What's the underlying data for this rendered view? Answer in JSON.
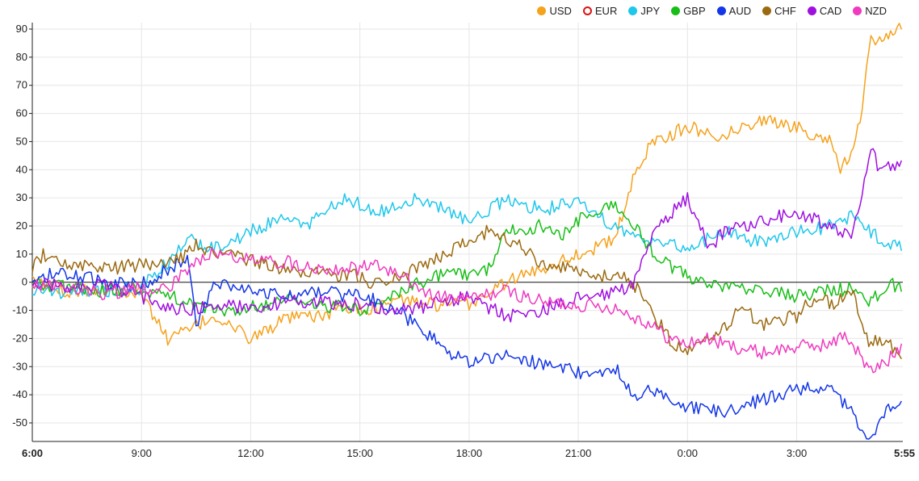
{
  "chart_data": {
    "type": "line",
    "title": "",
    "xlabel": "",
    "ylabel": "",
    "ylim": [
      -55,
      92
    ],
    "x_ticks": [
      "6:00",
      "9:00",
      "12:00",
      "15:00",
      "18:00",
      "21:00",
      "0:00",
      "3:00",
      "5:55"
    ],
    "y_ticks": [
      90,
      80,
      70,
      60,
      50,
      40,
      30,
      20,
      10,
      0,
      -10,
      -20,
      -30,
      -40,
      -50
    ],
    "x_range": [
      0,
      23.9167
    ],
    "grid": true,
    "legend_position": "top-right",
    "series": [
      {
        "name": "USD",
        "color": "#f5a21c",
        "hollow": false,
        "points": [
          [
            0,
            0
          ],
          [
            1,
            -3
          ],
          [
            2,
            -2
          ],
          [
            3,
            -4
          ],
          [
            3.7,
            -20
          ],
          [
            4.3,
            -17
          ],
          [
            5,
            -12
          ],
          [
            6,
            -20
          ],
          [
            7,
            -13
          ],
          [
            8,
            -12
          ],
          [
            8.5,
            -8
          ],
          [
            9,
            -10
          ],
          [
            9.5,
            -9
          ],
          [
            10,
            -6
          ],
          [
            11,
            -8
          ],
          [
            12,
            -8
          ],
          [
            13,
            0
          ],
          [
            14,
            5
          ],
          [
            15,
            10
          ],
          [
            16,
            15
          ],
          [
            16.5,
            36
          ],
          [
            17,
            50
          ],
          [
            18,
            55
          ],
          [
            19,
            52
          ],
          [
            20,
            58
          ],
          [
            21,
            55
          ],
          [
            22,
            50
          ],
          [
            22.2,
            40
          ],
          [
            22.5,
            45
          ],
          [
            22.8,
            60
          ],
          [
            23,
            85
          ],
          [
            23.5,
            88
          ],
          [
            23.9167,
            92
          ]
        ]
      },
      {
        "name": "EUR",
        "color": "#dd1111",
        "hollow": true,
        "points": []
      },
      {
        "name": "JPY",
        "color": "#1fc7eb",
        "hollow": false,
        "points": [
          [
            0,
            -2
          ],
          [
            1,
            -4
          ],
          [
            2,
            -3
          ],
          [
            3,
            -2
          ],
          [
            3.8,
            8
          ],
          [
            4.3,
            15
          ],
          [
            5,
            12
          ],
          [
            6,
            18
          ],
          [
            6.8,
            22
          ],
          [
            7.5,
            20
          ],
          [
            8.5,
            30
          ],
          [
            9.5,
            25
          ],
          [
            10.5,
            30
          ],
          [
            11.5,
            25
          ],
          [
            12,
            22
          ],
          [
            13,
            29
          ],
          [
            14,
            26
          ],
          [
            15,
            28
          ],
          [
            16,
            20
          ],
          [
            16.5,
            16
          ],
          [
            17,
            15
          ],
          [
            18,
            12
          ],
          [
            19,
            18
          ],
          [
            20,
            14
          ],
          [
            21,
            18
          ],
          [
            22,
            20
          ],
          [
            22.5,
            24
          ],
          [
            23,
            18
          ],
          [
            23.5,
            13
          ],
          [
            23.9167,
            12
          ]
        ]
      },
      {
        "name": "GBP",
        "color": "#17be17",
        "hollow": false,
        "points": [
          [
            0,
            0
          ],
          [
            1,
            -2
          ],
          [
            2,
            -3
          ],
          [
            3,
            -2
          ],
          [
            4,
            -6
          ],
          [
            5,
            -10
          ],
          [
            6,
            -9
          ],
          [
            7,
            -6
          ],
          [
            8,
            -8
          ],
          [
            9,
            -10
          ],
          [
            9.5,
            -8
          ],
          [
            10,
            -4
          ],
          [
            11,
            2
          ],
          [
            12,
            3
          ],
          [
            12.5,
            4
          ],
          [
            13,
            18
          ],
          [
            14,
            20
          ],
          [
            14.5,
            16
          ],
          [
            15,
            22
          ],
          [
            16,
            28
          ],
          [
            16.5,
            20
          ],
          [
            17,
            12
          ],
          [
            17.5,
            6
          ],
          [
            18,
            2
          ],
          [
            19,
            -2
          ],
          [
            20,
            -3
          ],
          [
            21,
            -5
          ],
          [
            22,
            -3
          ],
          [
            22.5,
            -2
          ],
          [
            23,
            -8
          ],
          [
            23.5,
            0
          ],
          [
            23.9167,
            -3
          ]
        ]
      },
      {
        "name": "AUD",
        "color": "#1336e8",
        "hollow": false,
        "points": [
          [
            0,
            2
          ],
          [
            1,
            3
          ],
          [
            2,
            0
          ],
          [
            3,
            -1
          ],
          [
            3.8,
            5
          ],
          [
            4.3,
            8
          ],
          [
            4.5,
            -15
          ],
          [
            4.8,
            -8
          ],
          [
            5,
            0
          ],
          [
            6,
            -3
          ],
          [
            7,
            -5
          ],
          [
            8,
            -3
          ],
          [
            8.5,
            -5
          ],
          [
            9,
            -4
          ],
          [
            10,
            -10
          ],
          [
            10.5,
            -15
          ],
          [
            11,
            -20
          ],
          [
            11.5,
            -26
          ],
          [
            12,
            -28
          ],
          [
            13,
            -26
          ],
          [
            14,
            -29
          ],
          [
            15,
            -32
          ],
          [
            15.5,
            -34
          ],
          [
            16,
            -30
          ],
          [
            16.5,
            -40
          ],
          [
            17,
            -38
          ],
          [
            18,
            -44
          ],
          [
            19,
            -46
          ],
          [
            20,
            -42
          ],
          [
            21,
            -38
          ],
          [
            22,
            -37
          ],
          [
            22.3,
            -43
          ],
          [
            22.8,
            -52
          ],
          [
            23,
            -55
          ],
          [
            23.5,
            -46
          ],
          [
            23.9167,
            -42
          ]
        ]
      },
      {
        "name": "CHF",
        "color": "#9b6a10",
        "hollow": false,
        "points": [
          [
            0,
            5
          ],
          [
            0.3,
            10
          ],
          [
            1,
            6
          ],
          [
            2,
            5
          ],
          [
            3,
            6
          ],
          [
            4,
            8
          ],
          [
            4.5,
            13
          ],
          [
            5,
            10
          ],
          [
            6,
            8
          ],
          [
            7,
            4
          ],
          [
            8,
            3
          ],
          [
            9,
            2
          ],
          [
            9.5,
            -1
          ],
          [
            10,
            1
          ],
          [
            11,
            8
          ],
          [
            12,
            15
          ],
          [
            12.5,
            18
          ],
          [
            13,
            15
          ],
          [
            13.5,
            12
          ],
          [
            14,
            6
          ],
          [
            15,
            5
          ],
          [
            15.5,
            1
          ],
          [
            16,
            3
          ],
          [
            16.5,
            0
          ],
          [
            17,
            -10
          ],
          [
            17.5,
            -20
          ],
          [
            18,
            -25
          ],
          [
            19,
            -17
          ],
          [
            19.5,
            -8
          ],
          [
            20,
            -15
          ],
          [
            21,
            -12
          ],
          [
            21.5,
            -5
          ],
          [
            22,
            -8
          ],
          [
            22.5,
            -3
          ],
          [
            23,
            -22
          ],
          [
            23.5,
            -20
          ],
          [
            23.9167,
            -30
          ]
        ]
      },
      {
        "name": "CAD",
        "color": "#9f10e0",
        "hollow": false,
        "points": [
          [
            0,
            0
          ],
          [
            1,
            -2
          ],
          [
            2,
            -1
          ],
          [
            3,
            -5
          ],
          [
            4,
            -10
          ],
          [
            5,
            -8
          ],
          [
            6,
            -9
          ],
          [
            7,
            -7
          ],
          [
            8,
            -7
          ],
          [
            9,
            -8
          ],
          [
            10,
            -10
          ],
          [
            11,
            -8
          ],
          [
            12,
            -5
          ],
          [
            13,
            -12
          ],
          [
            14,
            -10
          ],
          [
            15,
            -6
          ],
          [
            16,
            -4
          ],
          [
            16.5,
            0
          ],
          [
            17,
            15
          ],
          [
            17.5,
            24
          ],
          [
            18,
            30
          ],
          [
            18.3,
            22
          ],
          [
            18.6,
            12
          ],
          [
            19,
            18
          ],
          [
            20,
            22
          ],
          [
            21,
            25
          ],
          [
            22,
            20
          ],
          [
            22.5,
            15
          ],
          [
            22.8,
            30
          ],
          [
            23,
            48
          ],
          [
            23.3,
            40
          ],
          [
            23.9167,
            41
          ]
        ]
      },
      {
        "name": "NZD",
        "color": "#ef3bbf",
        "hollow": false,
        "points": [
          [
            0,
            0
          ],
          [
            1,
            -2
          ],
          [
            2,
            -4
          ],
          [
            3,
            -2
          ],
          [
            3.5,
            -3
          ],
          [
            4,
            1
          ],
          [
            4.5,
            8
          ],
          [
            5,
            10
          ],
          [
            6,
            8
          ],
          [
            7,
            7
          ],
          [
            8,
            5
          ],
          [
            9,
            5
          ],
          [
            9.5,
            6
          ],
          [
            10,
            3
          ],
          [
            11,
            -5
          ],
          [
            12,
            -6
          ],
          [
            13,
            -3
          ],
          [
            14,
            -7
          ],
          [
            15,
            -8
          ],
          [
            16,
            -9
          ],
          [
            16.5,
            -12
          ],
          [
            17,
            -15
          ],
          [
            17.5,
            -20
          ],
          [
            18,
            -22
          ],
          [
            18.5,
            -20
          ],
          [
            19,
            -22
          ],
          [
            20,
            -25
          ],
          [
            21,
            -23
          ],
          [
            22,
            -22
          ],
          [
            22.3,
            -18
          ],
          [
            22.7,
            -25
          ],
          [
            23,
            -32
          ],
          [
            23.5,
            -28
          ],
          [
            23.9167,
            -22
          ]
        ]
      }
    ]
  }
}
